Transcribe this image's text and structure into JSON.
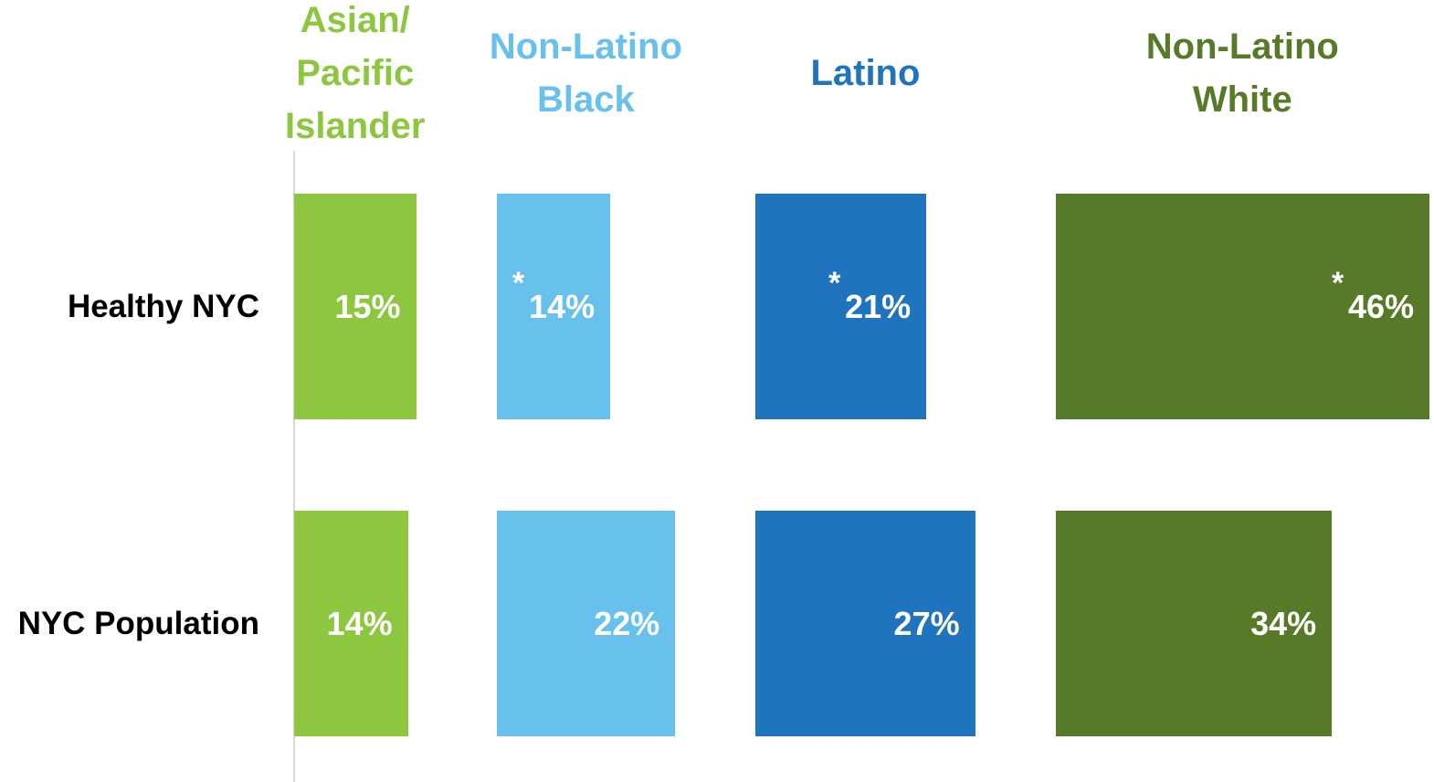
{
  "chart_data": {
    "type": "bar",
    "categories": [
      "Healthy NYC",
      "NYC Population"
    ],
    "series": [
      {
        "name": "Asian/ Pacific Islander",
        "color": "#8dc63f",
        "values": [
          15,
          14
        ],
        "value_labels": [
          "15%",
          "14%"
        ]
      },
      {
        "name": "Non-Latino Black",
        "color": "#67c1ec",
        "values": [
          14,
          22
        ],
        "value_labels": [
          "14%",
          "22%"
        ]
      },
      {
        "name": "Latino",
        "color": "#1f74bd",
        "values": [
          21,
          27
        ],
        "value_labels": [
          "21%",
          "27%"
        ]
      },
      {
        "name": "Non-Latino White",
        "color": "#567a27",
        "values": [
          46,
          34
        ],
        "value_labels": [
          "46%",
          "34%"
        ]
      }
    ],
    "annotations": [
      {
        "series": 1,
        "category": 0,
        "text": "*"
      },
      {
        "series": 2,
        "category": 0,
        "text": "*"
      },
      {
        "series": 3,
        "category": 0,
        "text": "*"
      }
    ]
  }
}
